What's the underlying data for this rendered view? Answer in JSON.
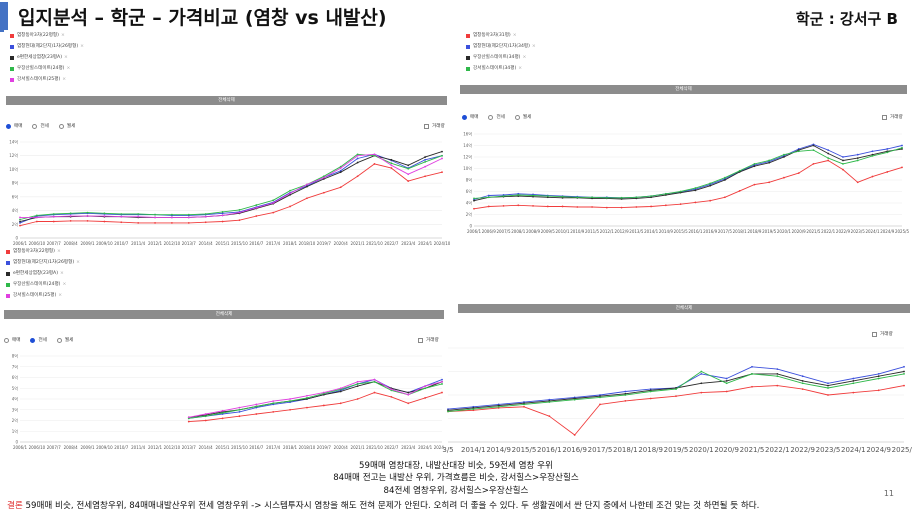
{
  "slide": {
    "title": "입지분석 – 학군 – 가격비교 (염창 vs 내발산)",
    "region": "학군 : 강서구 B",
    "page_number": "11",
    "footer_lines": [
      "59매매 염창대장, 내발산대장 비슷, 59전세 염창 우위",
      "84매매 전고는 내발산 우위, 가격흐름은 비슷, 강서힐스>우장산힐스",
      "84전세 염창우위, 강서힐스>우장산힐스"
    ],
    "conclusion_label": "결론",
    "conclusion_text": " 59매매 비슷, 전세염창우위, 84매매내발산우위 전세 염창우위 -> 시스템투자시 염창을 해도 전혀 문제가 안된다. 오히려 더 좋을 수 있다. 두 생활권에서 싼 단지 중에서 나한테 조건 맞는 것 하면될 듯 하다."
  },
  "ui": {
    "all_delete": "전체삭제",
    "radio_sale": "매매",
    "radio_jeonse": "전세",
    "radio_wolse": "월세",
    "volume": "거래량"
  },
  "colors": {
    "red": "#f03c3c",
    "blue": "#3c50dc",
    "black": "#2a2a2a",
    "green": "#2fb84a",
    "magenta": "#e040e0"
  },
  "legends": {
    "left_top": [
      {
        "label": "염창동아3차(22평형)",
        "color": "red"
      },
      {
        "label": "염창현대(제2단지)1차(26평형)",
        "color": "blue"
      },
      {
        "label": "e편한세상염창(23평A)",
        "color": "black"
      },
      {
        "label": "우장산힐스테이트(24평)",
        "color": "green"
      },
      {
        "label": "강서힐스테이트(25평)",
        "color": "magenta"
      }
    ],
    "right_top": [
      {
        "label": "염창동아3차(31평)",
        "color": "red"
      },
      {
        "label": "염창현대(제2단지)1차(34평)",
        "color": "blue"
      },
      {
        "label": "우장산힐스테이트(34평)",
        "color": "black"
      },
      {
        "label": "강서힐스테이트(34평)",
        "color": "green"
      }
    ],
    "left_bottom": [
      {
        "label": "염창동아3차(22평형)",
        "color": "red"
      },
      {
        "label": "염창현대(제2단지)1차(26평형)",
        "color": "blue"
      },
      {
        "label": "e편한세상염창(23평A)",
        "color": "black"
      },
      {
        "label": "우장산힐스테이트(24평)",
        "color": "green"
      },
      {
        "label": "강서힐스테이트(25평)",
        "color": "magenta"
      }
    ]
  },
  "chart_data": [
    {
      "id": "c1",
      "type": "line",
      "title": "",
      "ylim": [
        0,
        14
      ],
      "yticks": [
        "0",
        "2억",
        "4억",
        "6억",
        "8억",
        "10억",
        "12억",
        "14억"
      ],
      "xticks": [
        "2006/1",
        "2006/10",
        "2007/7",
        "2008/4",
        "2009/1",
        "2009/10",
        "2010/7",
        "2011/4",
        "2012/1",
        "2012/10",
        "2013/7",
        "2014/4",
        "2015/1",
        "2015/10",
        "2016/7",
        "2017/4",
        "2018/1",
        "2018/10",
        "2019/7",
        "2020/4",
        "2021/1",
        "2021/10",
        "2022/7",
        "2023/4",
        "2024/1",
        "2024/10"
      ],
      "series": [
        {
          "color": "red",
          "values": [
            1.8,
            2.4,
            2.4,
            2.5,
            2.5,
            2.4,
            2.3,
            2.2,
            2.2,
            2.2,
            2.2,
            2.3,
            2.4,
            2.6,
            3.2,
            3.7,
            4.6,
            5.8,
            6.6,
            7.4,
            9.0,
            10.8,
            10.2,
            8.3,
            9.0,
            9.6
          ]
        },
        {
          "color": "blue",
          "values": [
            2.2,
            3.2,
            3.4,
            3.5,
            3.6,
            3.5,
            3.4,
            3.4,
            3.4,
            3.3,
            3.3,
            3.4,
            3.6,
            3.8,
            4.5,
            5.2,
            6.6,
            7.6,
            8.8,
            9.8,
            11.6,
            12.2,
            11.3,
            10.2,
            11.4,
            12.0
          ]
        },
        {
          "color": "black",
          "values": [
            2.4,
            3.0,
            3.1,
            3.1,
            3.2,
            3.1,
            3.1,
            3.0,
            3.0,
            3.0,
            3.0,
            3.1,
            3.3,
            3.6,
            4.3,
            5.0,
            6.3,
            7.5,
            8.6,
            9.6,
            11.0,
            12.0,
            11.4,
            10.6,
            11.8,
            12.6
          ]
        },
        {
          "color": "green",
          "values": [
            2.7,
            3.3,
            3.5,
            3.6,
            3.7,
            3.6,
            3.5,
            3.5,
            3.4,
            3.4,
            3.4,
            3.5,
            3.8,
            4.1,
            4.8,
            5.5,
            6.9,
            7.8,
            9.0,
            10.4,
            12.2,
            12.0,
            10.9,
            10.1,
            11.1,
            12.0
          ]
        },
        {
          "color": "magenta",
          "values": [
            3.0,
            3.0,
            3.1,
            3.2,
            3.2,
            3.2,
            3.1,
            3.1,
            3.0,
            3.0,
            3.0,
            3.1,
            3.3,
            3.7,
            4.4,
            5.1,
            6.5,
            7.8,
            8.8,
            10.2,
            12.0,
            12.2,
            10.6,
            9.3,
            10.4,
            11.6
          ]
        }
      ]
    },
    {
      "id": "c2",
      "type": "line",
      "title": "",
      "ylim": [
        0,
        16
      ],
      "yticks": [
        "0",
        "2억",
        "4억",
        "6억",
        "8억",
        "10억",
        "12억",
        "14억",
        "16억"
      ],
      "xticks": [
        "2006/1",
        "2006/9",
        "2007/5",
        "2008/1",
        "2008/9",
        "2009/5",
        "2010/1",
        "2010/9",
        "2011/5",
        "2012/1",
        "2012/9",
        "2013/5",
        "2014/1",
        "2014/9",
        "2015/5",
        "2016/1",
        "2016/9",
        "2017/5",
        "2018/1",
        "2018/9",
        "2019/5",
        "2020/1",
        "2020/9",
        "2021/5",
        "2022/1",
        "2022/9",
        "2023/5",
        "2024/1",
        "2024/9",
        "2025/5"
      ],
      "series": [
        {
          "color": "red",
          "values": [
            3.0,
            3.4,
            3.5,
            3.6,
            3.5,
            3.4,
            3.4,
            3.3,
            3.3,
            3.2,
            3.2,
            3.3,
            3.4,
            3.6,
            3.8,
            4.1,
            4.4,
            5.0,
            6.1,
            7.2,
            7.6,
            8.4,
            9.2,
            10.8,
            11.4,
            9.8,
            7.6,
            8.6,
            9.4,
            10.2
          ]
        },
        {
          "color": "blue",
          "values": [
            4.6,
            5.3,
            5.4,
            5.6,
            5.5,
            5.3,
            5.2,
            5.1,
            5.0,
            5.0,
            4.9,
            5.0,
            5.2,
            5.6,
            5.9,
            6.4,
            7.2,
            8.2,
            9.5,
            10.6,
            11.2,
            12.2,
            13.4,
            14.2,
            13.2,
            12.0,
            12.4,
            13.0,
            13.4,
            14.0
          ]
        },
        {
          "color": "black",
          "values": [
            4.4,
            5.0,
            5.1,
            5.2,
            5.1,
            5.0,
            4.9,
            4.9,
            4.8,
            4.8,
            4.7,
            4.8,
            5.0,
            5.4,
            5.8,
            6.2,
            7.0,
            8.0,
            9.4,
            10.4,
            11.0,
            12.0,
            13.2,
            14.0,
            12.6,
            11.4,
            11.8,
            12.4,
            13.0,
            13.4
          ]
        },
        {
          "color": "green",
          "values": [
            4.8,
            5.0,
            5.2,
            5.4,
            5.3,
            5.2,
            5.1,
            5.0,
            5.0,
            4.9,
            4.9,
            5.0,
            5.2,
            5.6,
            6.0,
            6.6,
            7.4,
            8.4,
            9.6,
            10.8,
            11.4,
            12.4,
            13.0,
            13.2,
            11.8,
            10.8,
            11.4,
            12.2,
            12.8,
            13.6
          ]
        }
      ]
    },
    {
      "id": "c3",
      "type": "line",
      "title": "",
      "ylim": [
        0,
        8
      ],
      "yticks": [
        "0",
        "1억",
        "2억",
        "3억",
        "4억",
        "5억",
        "6억",
        "7억",
        "8억"
      ],
      "xticks": [
        "2006/1",
        "2006/10",
        "2007/7",
        "2008/4",
        "2009/1",
        "2009/10",
        "2010/7",
        "2011/4",
        "2012/1",
        "2012/10",
        "2013/7",
        "2014/4",
        "2015/1",
        "2015/10",
        "2016/7",
        "2017/4",
        "2018/1",
        "2018/10",
        "2019/7",
        "2020/4",
        "2021/1",
        "2021/10",
        "2022/7",
        "2023/4",
        "2024/1",
        "2024/10"
      ],
      "series": [
        {
          "color": "red",
          "values": [
            null,
            null,
            null,
            null,
            null,
            null,
            null,
            null,
            null,
            null,
            1.9,
            2.0,
            2.2,
            2.4,
            2.6,
            2.8,
            3.0,
            3.2,
            3.4,
            3.6,
            4.0,
            4.6,
            4.2,
            3.6,
            4.1,
            4.6
          ]
        },
        {
          "color": "blue",
          "values": [
            null,
            null,
            null,
            null,
            null,
            null,
            null,
            null,
            null,
            null,
            2.2,
            2.4,
            2.6,
            2.8,
            3.2,
            3.5,
            3.7,
            4.0,
            4.4,
            4.8,
            5.4,
            5.8,
            5.0,
            4.6,
            5.2,
            5.8
          ]
        },
        {
          "color": "black",
          "values": [
            null,
            null,
            null,
            null,
            null,
            null,
            null,
            null,
            null,
            null,
            2.3,
            2.5,
            2.8,
            3.0,
            3.3,
            3.6,
            3.8,
            4.0,
            4.4,
            4.7,
            5.2,
            5.6,
            5.0,
            4.6,
            5.0,
            5.6
          ]
        },
        {
          "color": "green",
          "values": [
            null,
            null,
            null,
            null,
            null,
            null,
            null,
            null,
            null,
            null,
            2.2,
            2.4,
            2.7,
            3.0,
            3.3,
            3.6,
            3.8,
            4.1,
            4.5,
            4.9,
            5.4,
            5.6,
            4.8,
            4.4,
            5.0,
            5.4
          ]
        },
        {
          "color": "magenta",
          "values": [
            null,
            null,
            null,
            null,
            null,
            null,
            null,
            null,
            null,
            null,
            2.3,
            2.6,
            2.9,
            3.2,
            3.5,
            3.8,
            4.0,
            4.3,
            4.6,
            5.0,
            5.6,
            5.8,
            4.9,
            4.4,
            5.2,
            5.6
          ]
        }
      ]
    },
    {
      "id": "c4",
      "type": "line",
      "title": "",
      "ylim": [
        0,
        8
      ],
      "yticks": [],
      "xticks": [
        "3/5",
        "2014/1",
        "2014/9",
        "2015/5",
        "2016/1",
        "2016/9",
        "2017/5",
        "2018/1",
        "2018/9",
        "2019/5",
        "2020/1",
        "2020/9",
        "2021/5",
        "2022/1",
        "2022/9",
        "2023/5",
        "2024/1",
        "2024/9",
        "2025/5"
      ],
      "series": [
        {
          "color": "red",
          "values": [
            2.6,
            2.7,
            2.9,
            3.0,
            2.2,
            0.6,
            3.2,
            3.5,
            3.7,
            3.9,
            4.2,
            4.3,
            4.7,
            4.8,
            4.5,
            4.0,
            4.2,
            4.4,
            4.8
          ]
        },
        {
          "color": "blue",
          "values": [
            2.8,
            3.0,
            3.2,
            3.4,
            3.6,
            3.8,
            4.0,
            4.3,
            4.5,
            4.6,
            5.8,
            5.4,
            6.4,
            6.2,
            5.6,
            5.0,
            5.4,
            5.8,
            6.4
          ]
        },
        {
          "color": "black",
          "values": [
            2.7,
            2.9,
            3.1,
            3.3,
            3.5,
            3.7,
            3.9,
            4.1,
            4.4,
            4.6,
            5.0,
            5.2,
            5.8,
            5.8,
            5.2,
            4.8,
            5.2,
            5.6,
            6.0
          ]
        },
        {
          "color": "green",
          "values": [
            2.6,
            2.8,
            3.0,
            3.2,
            3.4,
            3.6,
            3.8,
            4.0,
            4.3,
            4.5,
            6.0,
            5.0,
            5.8,
            5.6,
            5.0,
            4.6,
            5.0,
            5.4,
            5.8
          ]
        }
      ]
    }
  ]
}
